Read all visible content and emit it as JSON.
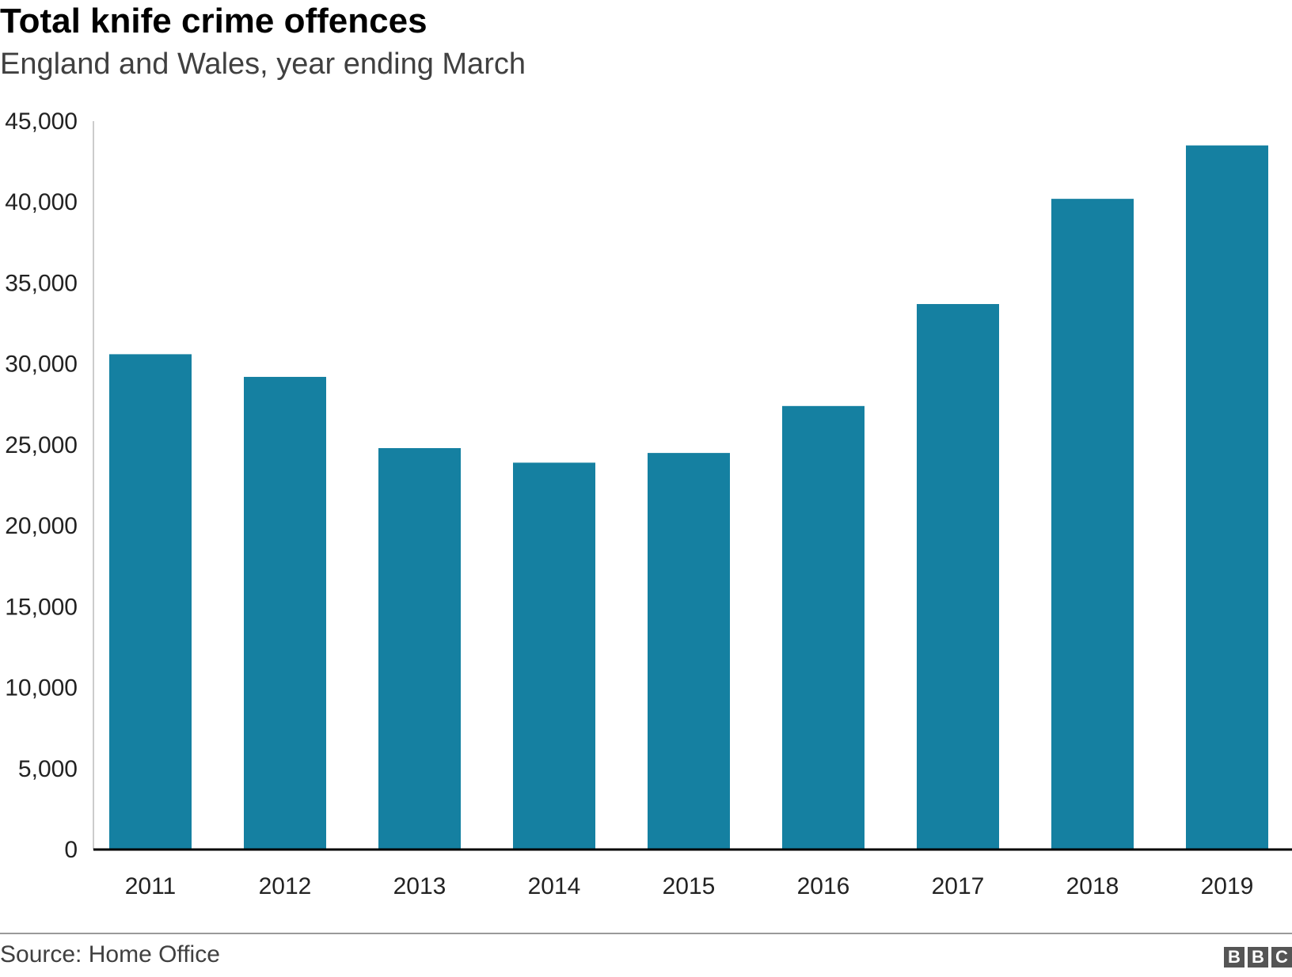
{
  "header": {
    "title": "Total knife crime offences",
    "subtitle": "England and Wales, year ending March"
  },
  "footer": {
    "source": "Source: Home Office",
    "logo_letters": [
      "B",
      "B",
      "C"
    ]
  },
  "colors": {
    "bar": "#1580a1",
    "axis": "#000000",
    "y_axis_line": "#cccccc",
    "logo": "#555555"
  },
  "chart_data": {
    "type": "bar",
    "title": "Total knife crime offences",
    "subtitle": "England and Wales, year ending March",
    "xlabel": "",
    "ylabel": "",
    "categories": [
      "2011",
      "2012",
      "2013",
      "2014",
      "2015",
      "2016",
      "2017",
      "2018",
      "2019"
    ],
    "values": [
      30600,
      29200,
      24800,
      23900,
      24500,
      27400,
      33700,
      40200,
      43500
    ],
    "ylim": [
      0,
      45000
    ],
    "yticks": [
      0,
      5000,
      10000,
      15000,
      20000,
      25000,
      30000,
      35000,
      40000,
      45000
    ],
    "ytick_labels": [
      "0",
      "5,000",
      "10,000",
      "15,000",
      "20,000",
      "25,000",
      "30,000",
      "35,000",
      "40,000",
      "45,000"
    ],
    "grid": false,
    "legend": "none"
  }
}
